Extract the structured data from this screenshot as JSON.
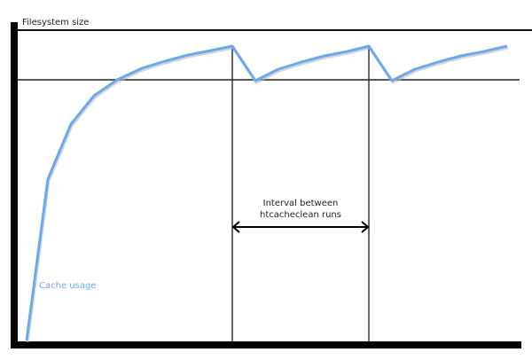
{
  "diagram": {
    "y_axis_label": "Filesystem size",
    "curve_label": "Cache usage",
    "interval_label_line1": "Interval between",
    "interval_label_line2": "htcacheclean runs",
    "colors": {
      "curve": "#6aa8f0",
      "axes": "#000000",
      "lines": "#222222"
    }
  }
}
